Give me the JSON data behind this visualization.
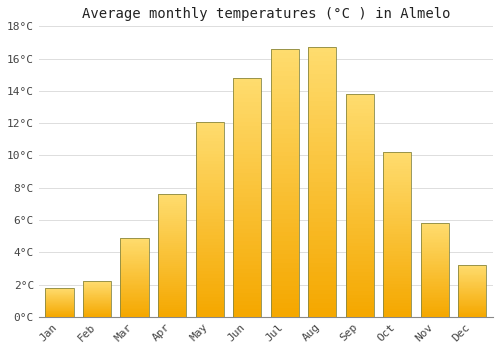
{
  "months": [
    "Jan",
    "Feb",
    "Mar",
    "Apr",
    "May",
    "Jun",
    "Jul",
    "Aug",
    "Sep",
    "Oct",
    "Nov",
    "Dec"
  ],
  "temperatures": [
    1.8,
    2.2,
    4.9,
    7.6,
    12.1,
    14.8,
    16.6,
    16.7,
    13.8,
    10.2,
    5.8,
    3.2
  ],
  "bar_color_bottom": "#F5A800",
  "bar_color_top": "#FFDD70",
  "bar_edge_color": "#888844",
  "background_color": "#FFFFFF",
  "grid_color": "#DDDDDD",
  "title": "Average monthly temperatures (°C ) in Almelo",
  "title_fontsize": 10,
  "tick_fontsize": 8,
  "ylim": [
    0,
    18
  ],
  "yticks": [
    0,
    2,
    4,
    6,
    8,
    10,
    12,
    14,
    16,
    18
  ],
  "bar_width": 0.75,
  "gradient_steps": 60
}
